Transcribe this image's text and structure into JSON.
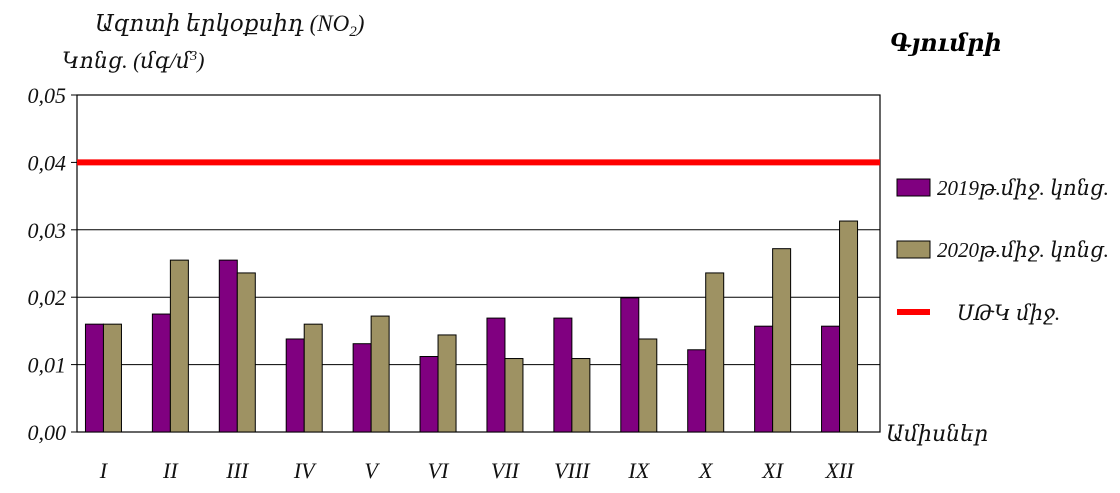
{
  "chart_data": {
    "type": "bar",
    "title_line1_main": "Ազոտի երկօքսիդ (NO",
    "title_line1_sub": "2",
    "title_line1_end": ")",
    "ylabel_main": "Կոնց. (մգ/մ",
    "ylabel_sup": "3",
    "ylabel_end": ")",
    "location": "Գյումրի",
    "xlabel": "Ամիսներ",
    "categories": [
      "I",
      "II",
      "III",
      "IV",
      "V",
      "VI",
      "VII",
      "VIII",
      "IX",
      "X",
      "XI",
      "XII"
    ],
    "y_ticks": [
      "0,00",
      "0,01",
      "0,02",
      "0,03",
      "0,04",
      "0,05"
    ],
    "ylim": [
      0,
      0.05
    ],
    "grid": true,
    "legend_position": "right",
    "series": [
      {
        "name": "2019թ.միջ. կոնց.",
        "color": "#800080",
        "values": [
          0.016,
          0.0175,
          0.0255,
          0.0138,
          0.0131,
          0.0112,
          0.0169,
          0.0169,
          0.0199,
          0.0122,
          0.0157,
          0.0157
        ]
      },
      {
        "name": "2020թ.միջ. կոնց.",
        "color": "#9e9263",
        "values": [
          0.016,
          0.0255,
          0.0236,
          0.016,
          0.0172,
          0.0144,
          0.0109,
          0.0109,
          0.0138,
          0.0236,
          0.0272,
          0.0313
        ]
      }
    ],
    "reference_line": {
      "name": "ՍԹԿ միջ.",
      "value": 0.04,
      "color": "#ff0000"
    }
  }
}
